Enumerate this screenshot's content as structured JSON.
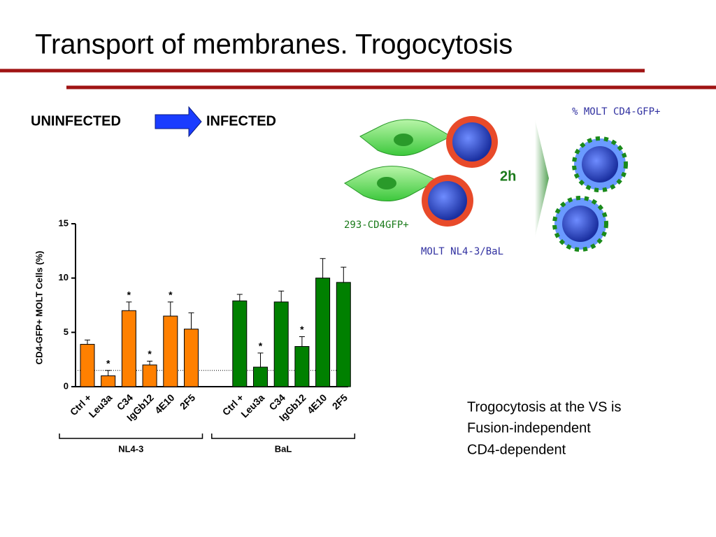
{
  "header": {
    "title": "Transport of membranes. Trogocytosis"
  },
  "diagram": {
    "from_label": "UNINFECTED",
    "to_label": "INFECTED",
    "result_label": "% MOLT CD4-GFP+",
    "time_label": "2h",
    "target_label": "293-CD4GFP+",
    "effector_label": "MOLT NL4-3/BaL"
  },
  "chart_data": {
    "type": "bar",
    "ylabel": "CD4-GFP+ MOLT Cells (%)",
    "categories": [
      "Ctrl +",
      "Leu3a",
      "C34",
      "IgGb12",
      "4E10",
      "2F5"
    ],
    "series": [
      {
        "name": "NL4-3",
        "color": "#ff8000",
        "values": [
          3.9,
          1.0,
          7.0,
          2.0,
          6.5,
          5.3
        ],
        "errors": [
          0.4,
          0.5,
          0.8,
          0.35,
          1.3,
          1.5
        ],
        "markers": [
          null,
          "*",
          "*",
          "*",
          "*",
          null
        ]
      },
      {
        "name": "BaL",
        "color": "#008000",
        "values": [
          7.9,
          1.8,
          7.8,
          3.7,
          10.0,
          9.6
        ],
        "errors": [
          0.6,
          1.3,
          1.0,
          0.9,
          1.8,
          1.4
        ],
        "markers": [
          null,
          "*",
          null,
          "*",
          null,
          null
        ]
      }
    ],
    "ylim": [
      0,
      15
    ],
    "yticks": [
      0,
      5,
      10,
      15
    ],
    "reference_line": 1.5
  },
  "caption": {
    "lines": [
      "Trogocytosis at the VS is",
      "Fusion-independent",
      "CD4-dependent"
    ]
  }
}
